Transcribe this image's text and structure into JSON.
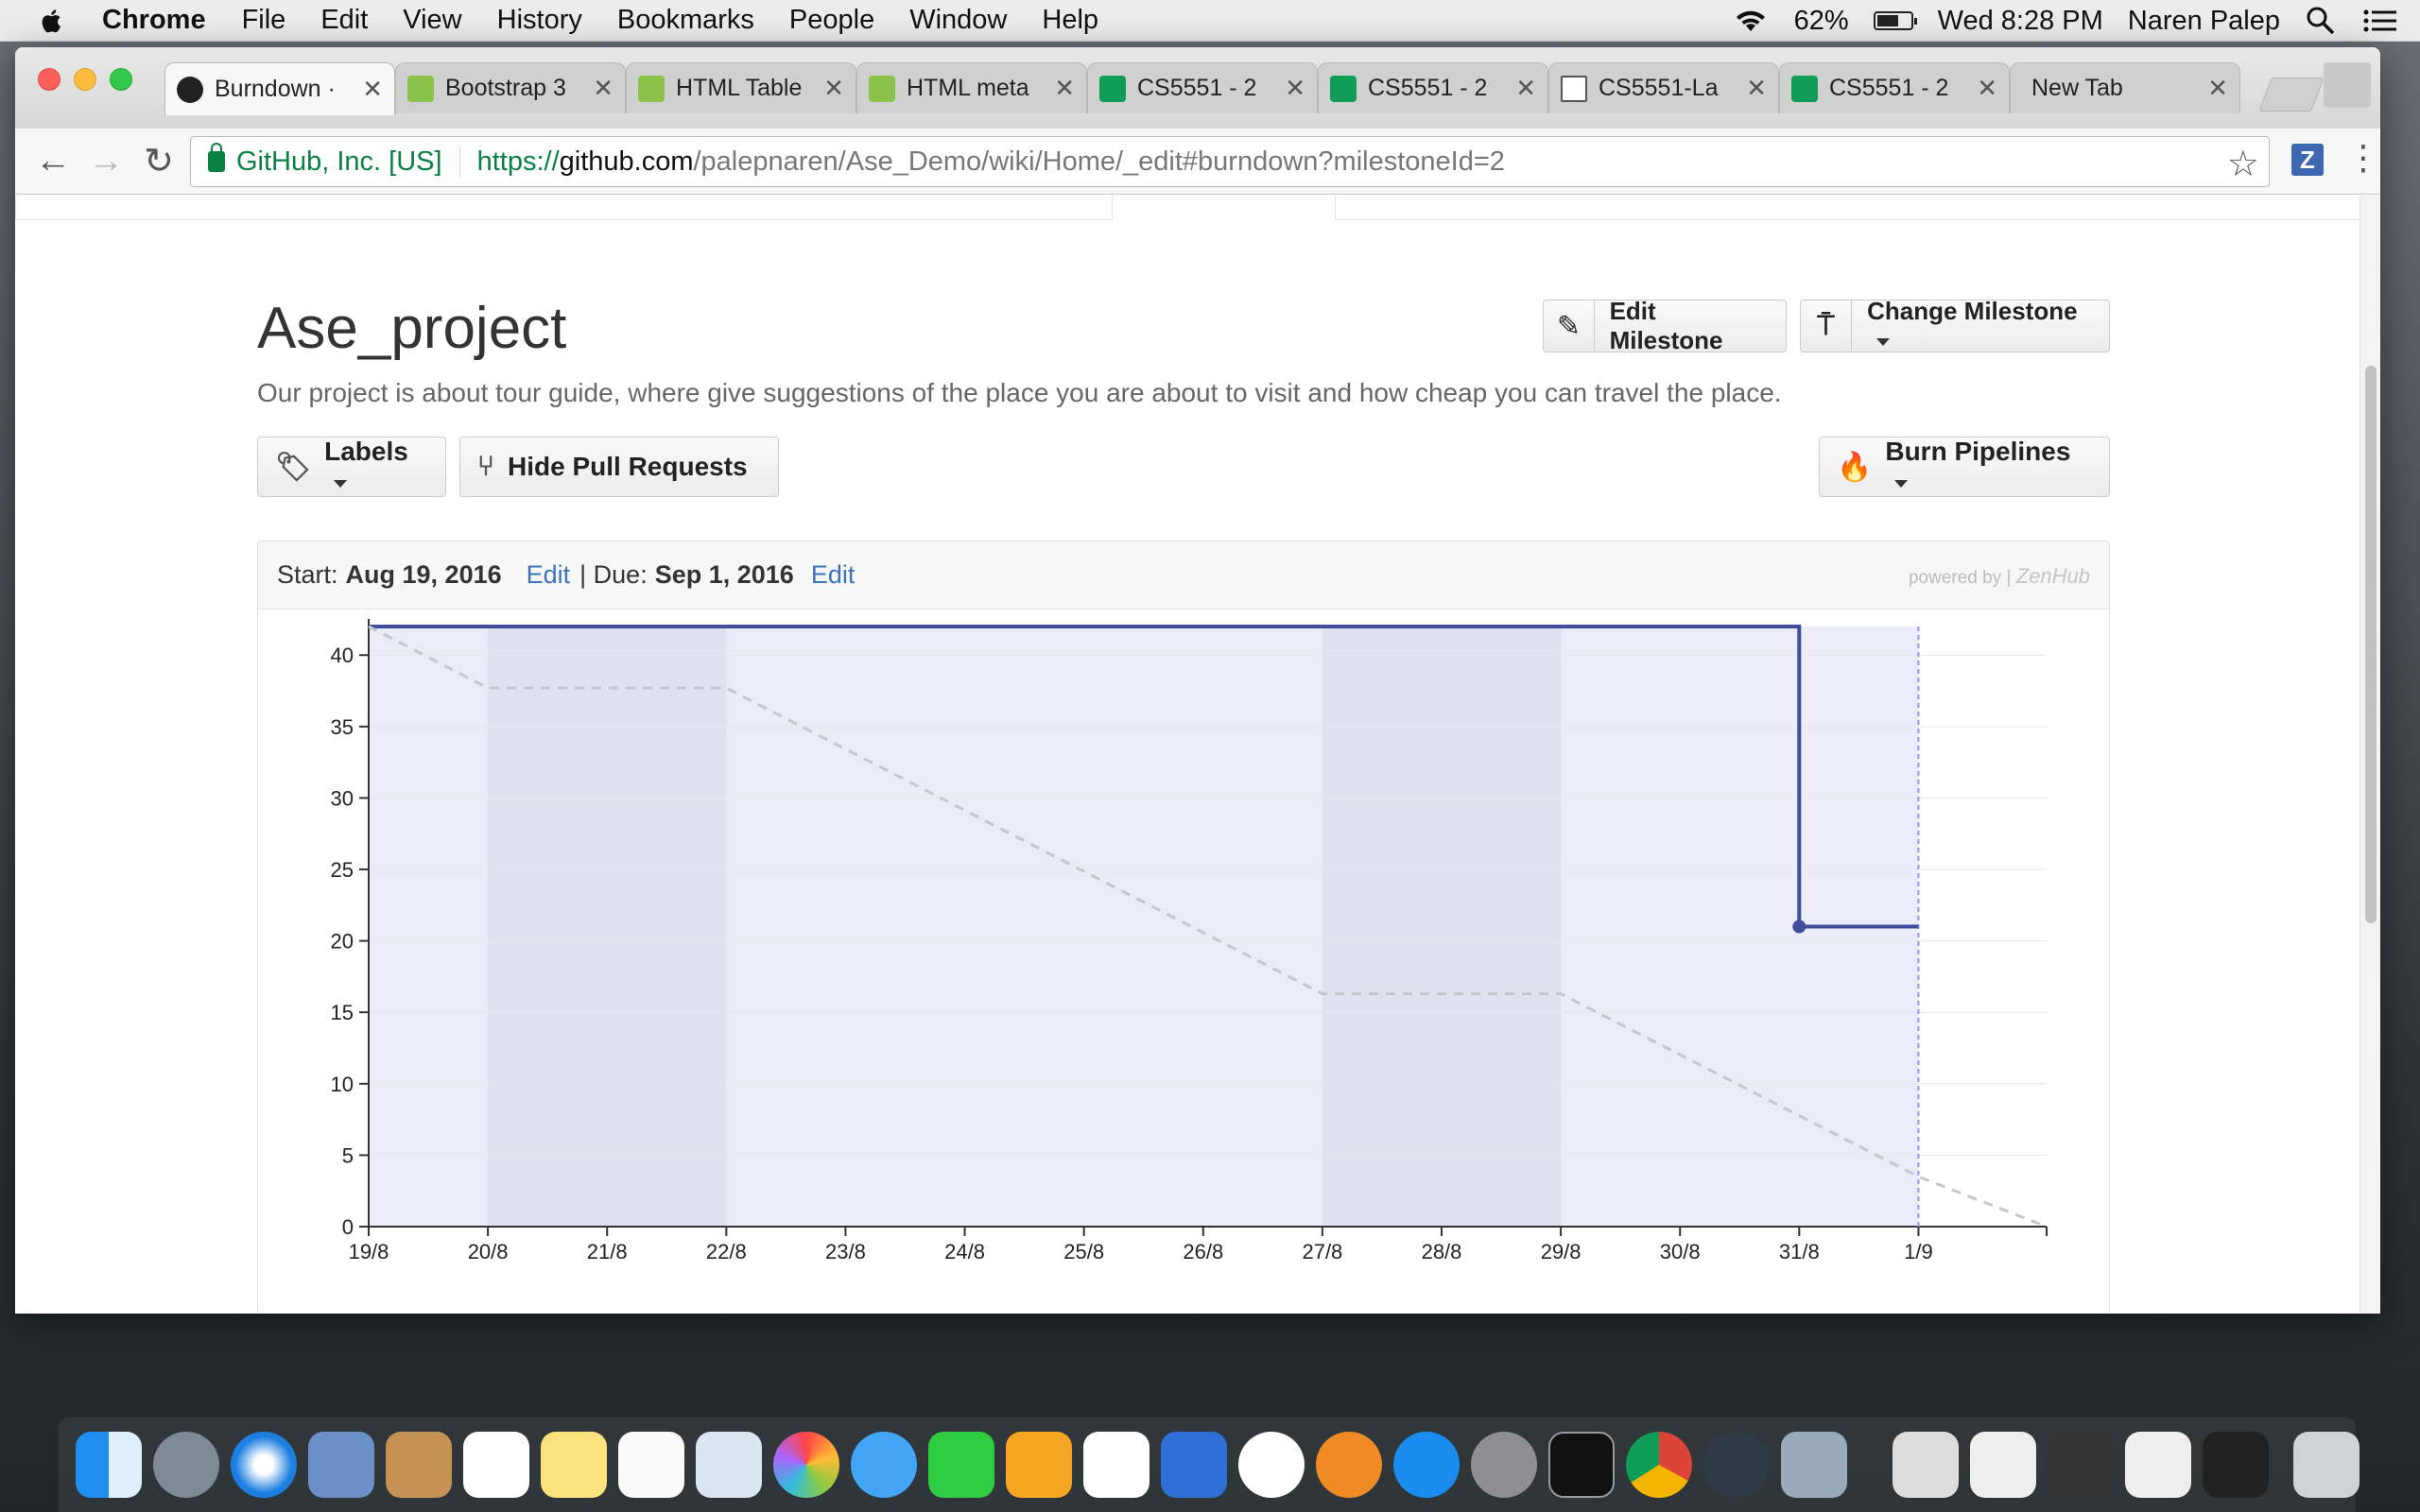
{
  "menubar": {
    "app": "Chrome",
    "items": [
      "File",
      "Edit",
      "View",
      "History",
      "Bookmarks",
      "People",
      "Window",
      "Help"
    ],
    "battery": "62%",
    "clock": "Wed 8:28 PM",
    "user": "Naren Palep"
  },
  "tabs": [
    {
      "title": "Burndown ·",
      "icon": "github-icon",
      "active": true
    },
    {
      "title": "Bootstrap 3",
      "icon": "w3schools-icon"
    },
    {
      "title": "HTML Table",
      "icon": "w3schools-icon"
    },
    {
      "title": "HTML meta",
      "icon": "w3schools-icon"
    },
    {
      "title": "CS5551 - 2",
      "icon": "sheets-icon"
    },
    {
      "title": "CS5551 - 2",
      "icon": "sheets-icon"
    },
    {
      "title": "CS5551-La",
      "icon": "document-icon"
    },
    {
      "title": "CS5551 - 2",
      "icon": "sheets-icon"
    },
    {
      "title": "New Tab",
      "icon": ""
    }
  ],
  "address": {
    "secure_label": "GitHub, Inc. [US]",
    "scheme": "https://",
    "host": "github.com",
    "path": "/palepnaren/Ase_Demo/wiki/Home/_edit#burndown?milestoneId=2"
  },
  "milestone": {
    "title": "Ase_project",
    "description": "Our project is about tour guide, where give suggestions of the place you are about to visit and how cheap you can travel the place.",
    "edit_label": "Edit Milestone",
    "change_label": "Change Milestone",
    "labels_label": "Labels",
    "hide_pr_label": "Hide Pull Requests",
    "burn_label": "Burn Pipelines",
    "start_prefix": "Start:",
    "start_date": "Aug 19, 2016",
    "edit_link": "Edit",
    "due_prefix": "| Due:",
    "due_date": "Sep 1, 2016",
    "powered_by": "powered by |",
    "powered_brand": "ZenHub"
  },
  "chart_data": {
    "type": "line",
    "title": "",
    "xlabel": "",
    "ylabel": "",
    "categories": [
      "19/8",
      "20/8",
      "21/8",
      "22/8",
      "23/8",
      "24/8",
      "25/8",
      "26/8",
      "27/8",
      "28/8",
      "29/8",
      "30/8",
      "31/8",
      "1/9"
    ],
    "ylim": [
      0,
      42
    ],
    "yticks": [
      0,
      5,
      10,
      15,
      20,
      25,
      30,
      35,
      40
    ],
    "weekend_bands": [
      [
        "20/8",
        "22/8"
      ],
      [
        "27/8",
        "29/8"
      ]
    ],
    "series": [
      {
        "style": "solid",
        "color": "#3f4d9c",
        "points": [
          [
            "19/8",
            42
          ],
          [
            "31/8",
            42
          ],
          [
            "31/8",
            21
          ],
          [
            "1/9",
            21
          ]
        ]
      },
      {
        "style": "dashed",
        "color": "#c5c5cc",
        "points": [
          [
            "19/8",
            42
          ],
          [
            "20/8",
            37.7
          ],
          [
            "22/8",
            37.7
          ],
          [
            "27/8",
            16.3
          ],
          [
            "29/8",
            16.3
          ],
          [
            "1/9",
            3.5
          ],
          [
            "1/9+",
            0
          ]
        ]
      }
    ],
    "today_marker": "1/9",
    "colors": {
      "area": "#ececf8",
      "band": "#dfe1f1",
      "today_line": "#8f95e6"
    }
  }
}
